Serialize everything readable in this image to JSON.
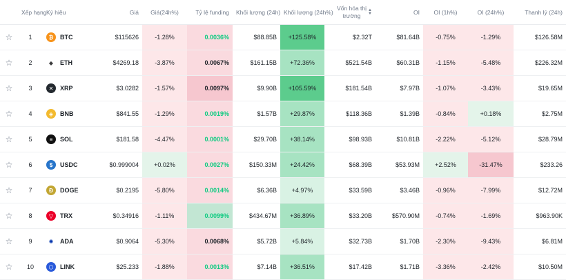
{
  "headers": {
    "rank": "Xếp hạng",
    "symbol": "Ký hiệu",
    "price": "Giá",
    "price_change": "Giá(24h%)",
    "funding": "Tỷ lệ funding",
    "volume": "Khối lượng (24h)",
    "volume_change": "Khối lượng (24h%)",
    "market_cap_line1": "Vốn hóa thị",
    "market_cap_line2": "trường",
    "oi": "OI",
    "oi_1h": "OI (1h%)",
    "oi_24h": "OI (24h%)",
    "liquidation": "Thanh lý (24h)"
  },
  "icons": {
    "star": "star-outline-icon",
    "sort": "sort-arrows-icon"
  },
  "colors": {
    "negative_bg": "#fde7e9",
    "positive_bg": "#e4f4ea",
    "funding_pink": "#f6c7cf",
    "funding_light_pink": "#fadadf",
    "funding_green": "#c2e6d3",
    "volume_strong": "#5ccc8d",
    "volume_medium": "#a7e3c2",
    "volume_light": "#d9f2e4",
    "positive_text": "#0ecb81"
  },
  "rows": [
    {
      "rank": "1",
      "symbol": "BTC",
      "icon": "bitcoin-icon",
      "icon_color": "#f7931a",
      "price": "$115626",
      "price_change": "-1.28%",
      "funding": "0.0036%",
      "volume": "$88.85B",
      "volume_change": "+125.58%",
      "market_cap": "$2.32T",
      "oi": "$81.64B",
      "oi_1h": "-0.75%",
      "oi_24h": "-1.29%",
      "liquidation": "$126.58M"
    },
    {
      "rank": "2",
      "symbol": "ETH",
      "icon": "ethereum-icon",
      "icon_color": "#ffffff",
      "price": "$4269.18",
      "price_change": "-3.87%",
      "funding": "0.0067%",
      "volume": "$161.15B",
      "volume_change": "+72.36%",
      "market_cap": "$521.54B",
      "oi": "$60.31B",
      "oi_1h": "-1.15%",
      "oi_24h": "-5.48%",
      "liquidation": "$226.32M"
    },
    {
      "rank": "3",
      "symbol": "XRP",
      "icon": "xrp-icon",
      "icon_color": "#23292f",
      "price": "$3.0282",
      "price_change": "-1.57%",
      "funding": "0.0097%",
      "volume": "$9.90B",
      "volume_change": "+105.59%",
      "market_cap": "$181.54B",
      "oi": "$7.97B",
      "oi_1h": "-1.07%",
      "oi_24h": "-3.43%",
      "liquidation": "$19.65M"
    },
    {
      "rank": "4",
      "symbol": "BNB",
      "icon": "bnb-icon",
      "icon_color": "#f3ba2f",
      "price": "$841.55",
      "price_change": "-1.29%",
      "funding": "0.0019%",
      "volume": "$1.57B",
      "volume_change": "+29.87%",
      "market_cap": "$118.36B",
      "oi": "$1.39B",
      "oi_1h": "-0.84%",
      "oi_24h": "+0.18%",
      "liquidation": "$2.75M"
    },
    {
      "rank": "5",
      "symbol": "SOL",
      "icon": "solana-icon",
      "icon_color": "#111111",
      "price": "$181.58",
      "price_change": "-4.47%",
      "funding": "0.0001%",
      "volume": "$29.70B",
      "volume_change": "+38.14%",
      "market_cap": "$98.93B",
      "oi": "$10.81B",
      "oi_1h": "-2.22%",
      "oi_24h": "-5.12%",
      "liquidation": "$28.79M"
    },
    {
      "rank": "6",
      "symbol": "USDC",
      "icon": "usdc-icon",
      "icon_color": "#2775ca",
      "price": "$0.999004",
      "price_change": "+0.02%",
      "funding": "0.0027%",
      "volume": "$150.33M",
      "volume_change": "+24.42%",
      "market_cap": "$68.39B",
      "oi": "$53.93M",
      "oi_1h": "+2.52%",
      "oi_24h": "-31.47%",
      "liquidation": "$233.26"
    },
    {
      "rank": "7",
      "symbol": "DOGE",
      "icon": "dogecoin-icon",
      "icon_color": "#c2a633",
      "price": "$0.2195",
      "price_change": "-5.80%",
      "funding": "0.0014%",
      "volume": "$6.36B",
      "volume_change": "+4.97%",
      "market_cap": "$33.59B",
      "oi": "$3.46B",
      "oi_1h": "-0.96%",
      "oi_24h": "-7.99%",
      "liquidation": "$12.72M"
    },
    {
      "rank": "8",
      "symbol": "TRX",
      "icon": "tron-icon",
      "icon_color": "#eb0029",
      "price": "$0.34916",
      "price_change": "-1.11%",
      "funding": "0.0099%",
      "volume": "$434.67M",
      "volume_change": "+36.89%",
      "market_cap": "$33.20B",
      "oi": "$570.90M",
      "oi_1h": "-0.74%",
      "oi_24h": "-1.69%",
      "liquidation": "$963.90K"
    },
    {
      "rank": "9",
      "symbol": "ADA",
      "icon": "cardano-icon",
      "icon_color": "#ffffff",
      "price": "$0.9064",
      "price_change": "-5.30%",
      "funding": "0.0068%",
      "volume": "$5.72B",
      "volume_change": "+5.84%",
      "market_cap": "$32.73B",
      "oi": "$1.70B",
      "oi_1h": "-2.30%",
      "oi_24h": "-9.43%",
      "liquidation": "$6.81M"
    },
    {
      "rank": "10",
      "symbol": "LINK",
      "icon": "chainlink-icon",
      "icon_color": "#2a5ada",
      "price": "$25.233",
      "price_change": "-1.88%",
      "funding": "0.0013%",
      "volume": "$7.14B",
      "volume_change": "+36.51%",
      "market_cap": "$17.42B",
      "oi": "$1.71B",
      "oi_1h": "-3.36%",
      "oi_24h": "-2.42%",
      "liquidation": "$10.50M"
    }
  ]
}
